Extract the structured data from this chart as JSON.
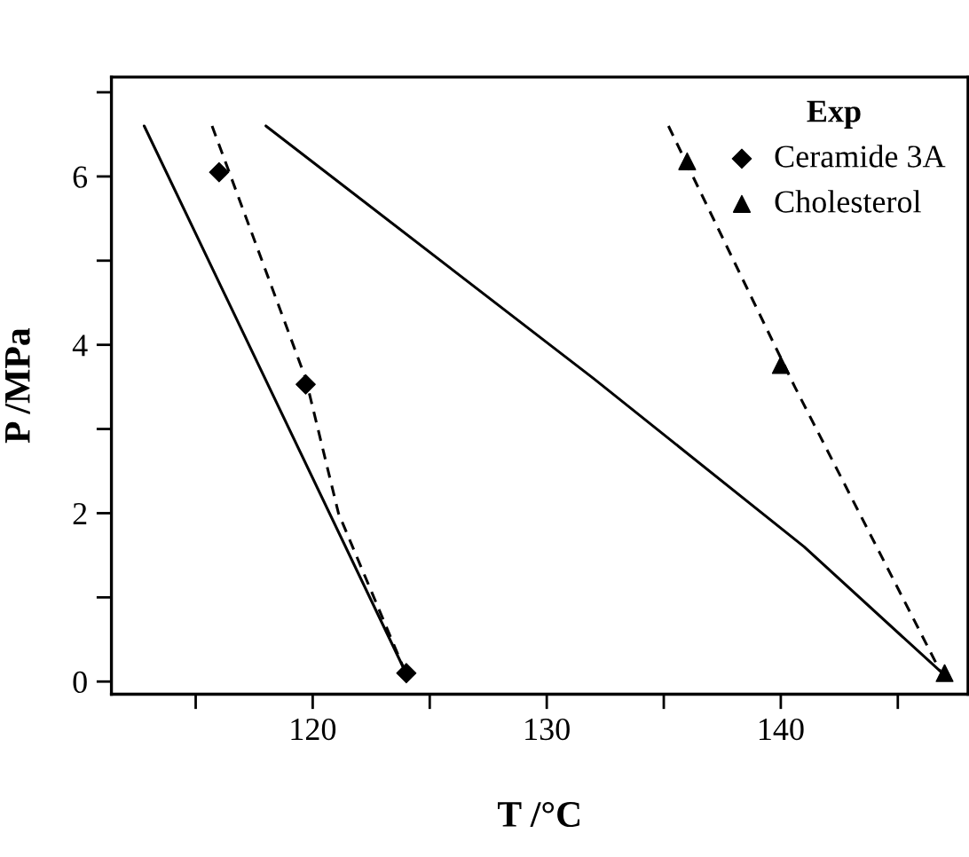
{
  "chart_data": {
    "type": "scatter",
    "xlabel": "T /°C",
    "ylabel": "P /MPa",
    "legend_title": "Exp",
    "legend": "top right",
    "grid": false,
    "xlim": [
      111.4,
      148
    ],
    "ylim": [
      -0.15,
      7.18
    ],
    "xticks": [
      {
        "value": 115,
        "label": null
      },
      120,
      {
        "value": 125,
        "label": null
      },
      130,
      {
        "value": 135,
        "label": null
      },
      140,
      {
        "value": 145,
        "label": null
      }
    ],
    "yticks": [
      0,
      {
        "value": 1,
        "label": null
      },
      2,
      {
        "value": 3,
        "label": null
      },
      4,
      {
        "value": 5,
        "label": null
      },
      6,
      {
        "value": 7,
        "label": null
      }
    ],
    "series": [
      {
        "name": "Ceramide 3A",
        "marker": "diamond",
        "color": "#000000",
        "x": [
          116,
          119.7,
          124
        ],
        "values": [
          6.05,
          3.53,
          0.1
        ]
      },
      {
        "name": "Cholesterol",
        "marker": "triangle",
        "color": "#000000",
        "x": [
          136,
          140,
          147
        ],
        "values": [
          6.18,
          3.76,
          0.1
        ]
      },
      {
        "type": "line",
        "marker": "none",
        "line_style": "solid",
        "color": "#000000",
        "x": [
          112.8,
          123.9
        ],
        "values": [
          6.6,
          0.15
        ]
      },
      {
        "type": "line",
        "marker": "none",
        "line_style": "dashed",
        "color": "#000000",
        "x": [
          115.7,
          119.7,
          121.1,
          123.9
        ],
        "values": [
          6.6,
          3.6,
          2.0,
          0.15
        ]
      },
      {
        "type": "line",
        "marker": "none",
        "line_style": "solid",
        "color": "#000000",
        "x": [
          118,
          132,
          141,
          146.9
        ],
        "values": [
          6.6,
          3.6,
          1.6,
          0.1
        ]
      },
      {
        "type": "line",
        "marker": "none",
        "line_style": "dashed",
        "color": "#000000",
        "x": [
          135.2,
          140.6,
          146.8
        ],
        "values": [
          6.6,
          3.5,
          0.13
        ]
      }
    ]
  }
}
